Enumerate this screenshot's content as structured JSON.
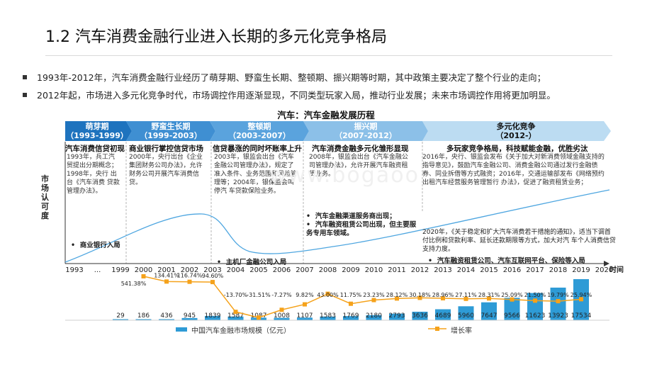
{
  "title": "1.2 汽车消费金融行业进入长期的多元化竞争格局",
  "bullets": [
    "1993年-2012年，汽车消费金融行业经历了萌芽期、野蛮生长期、整顿期、振兴期等时期，其中政策主要决定了整个行业的走向；",
    "2012年起，市场进入多元化竞争时代，市场调控作用逐渐显现，不同类型玩家入局，推动行业发展；未来市场调控作用将更加明显。"
  ],
  "timeline_title": "汽车：汽车金融发展历程",
  "y_axis_label": "市场认可度",
  "x_axis_label": "时间",
  "watermark": "www.bogaoo",
  "stages": [
    {
      "name": "萌芽期",
      "range": "（1993-1999）",
      "headline": "汽车消费信贷初现",
      "text": "1993年，兵工汽贸提出分期概念；1998年，央行 出台《汽车消费 贷款管理办法》。",
      "color": "#1e73be"
    },
    {
      "name": "野蛮生长期",
      "range": "（1999-2003）",
      "headline": "商业银行掌控信贷市场",
      "text": "2000年，央行出台《企业集团财务公司办法》，允许财务公司开展汽车消费信贷。",
      "color": "#3f8fd2"
    },
    {
      "name": "整顿期",
      "range": "（2003-2007）",
      "headline": "信贷暴涨的同时坏账率上升",
      "text": "2003年，银监会出台《汽车金融公司管理办法》，规定了准入条件、业务范围和风险管理等；2004年，银保监会叫停汽 车贷款保险业务。",
      "color": "#5aa3dd"
    },
    {
      "name": "振兴期",
      "range": "（2007-2012）",
      "headline": "汽车消费金融多元化雏形显现",
      "text": "2008年，银监会出台《汽车金融公司管理办法》，允许开展汽车融资租赁业务。",
      "color": "#8cc0e8"
    },
    {
      "name": "多元化竞争",
      "range": "（2012-）",
      "headline": "多玩家竞争格局，科技赋能金融，优胜劣汰",
      "text": "2016年，央行、银监会发布《关于加大对新消费领域金融支持的指导意见》，鼓励汽车金融公司、消费金融公司通过发行金融债券、同业拆借等方式融资；2016年，交通运输部发布《网络预约出租汽车经营服务管理暂行 办法》，促进了融资租赁业务；",
      "color": "#bcdcf2"
    }
  ],
  "annotations": {
    "bank_entry": "商业银行入局",
    "main_auto_finance": "主机厂金融公司入局",
    "channel_service": "汽车金融渠道服务商出现；",
    "leasing": "汽车融资租赁公司出现，但主要服务专用车领域。",
    "policy_2020": "2020年，《关于稳定和扩大汽车消费若干措施的通知》，适当下调首付比例和贷款利率、延长还款期限等方式，加大对汽 车个人消费信贷支持力度。",
    "players_2015": "汽车融资租赁公司、汽车互联网平台、保险等入局"
  },
  "icons": {
    "bullet": "square-bullet-icon"
  },
  "colors": {
    "bar": "#2e9bd6",
    "line": "#f5a21b",
    "curve": "#4ea6e0"
  },
  "chart_data": {
    "type": "bar",
    "categories": [
      "1993",
      "...",
      "1999",
      "2000",
      "2001",
      "2002",
      "2003",
      "2004",
      "2005",
      "2006",
      "2007",
      "2008",
      "2009",
      "2010",
      "2011",
      "2012",
      "2013",
      "2014",
      "2015",
      "2016",
      "2017",
      "2018",
      "2019",
      "2020"
    ],
    "series": [
      {
        "name": "中国汽车金融市场规模（亿元）",
        "type": "bar",
        "values": [
          null,
          null,
          29,
          186,
          436,
          945,
          1839,
          1587,
          1087,
          1008,
          1107,
          1583,
          1769,
          2180,
          2793,
          3636,
          4689,
          5960,
          7647,
          9566,
          11623,
          13923,
          17534,
          null
        ]
      },
      {
        "name": "增长率",
        "type": "line",
        "values": [
          null,
          null,
          null,
          541.38,
          134.41,
          116.74,
          94.6,
          -13.7,
          -31.51,
          -7.27,
          9.82,
          43.0,
          11.75,
          23.23,
          28.12,
          30.18,
          28.96,
          27.11,
          28.31,
          25.09,
          21.5,
          19.79,
          25.94,
          null
        ]
      }
    ],
    "bar_labels": [
      "",
      "",
      "29",
      "186",
      "436",
      "945",
      "1839",
      "1587",
      "1087",
      "1008",
      "1107",
      "1583",
      "1769",
      "2180",
      "2793",
      "3636",
      "4689",
      "5960",
      "7647",
      "9566",
      "11623",
      "13923",
      "17534",
      ""
    ],
    "rate_labels": [
      "",
      "",
      "",
      "541.38%",
      "134.41%",
      "116.74%",
      "94.60%",
      "-13.70%",
      "-31.51%",
      "-7.27%",
      "9.82%",
      "43.00%",
      "11.75%",
      "23.23%",
      "28.12%",
      "30.18%",
      "28.96%",
      "27.11%",
      "28.31%",
      "25.09%",
      "21.50%",
      "19.79%",
      "25.94%",
      ""
    ],
    "legend_position": "bottom",
    "grid": false
  }
}
